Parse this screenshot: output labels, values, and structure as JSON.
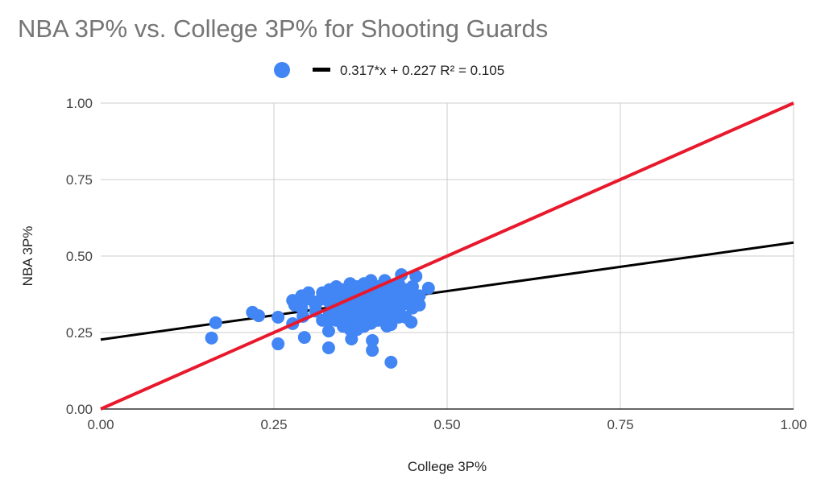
{
  "chart_data": {
    "type": "scatter",
    "title": "NBA 3P% vs. College 3P% for Shooting Guards",
    "xlabel": "College 3P%",
    "ylabel": "NBA 3P%",
    "xlim": [
      0,
      1
    ],
    "ylim": [
      0,
      1
    ],
    "x_ticks": [
      "0.00",
      "0.25",
      "0.50",
      "0.75",
      "1.00"
    ],
    "y_ticks": [
      "0.00",
      "0.25",
      "0.50",
      "0.75",
      "1.00"
    ],
    "grid": true,
    "legend_position": "top",
    "legend": {
      "series": "",
      "trendline": "0.317*x + 0.227 R² = 0.105"
    },
    "trendline": {
      "slope": 0.317,
      "intercept": 0.227,
      "r2": 0.105
    },
    "reference_line": {
      "slope": 1,
      "intercept": 0
    },
    "colors": {
      "points": "#4285f4",
      "trendline": "#000000",
      "reference": "#e8192c"
    },
    "points": [
      [
        0.16,
        0.232
      ],
      [
        0.166,
        0.282
      ],
      [
        0.219,
        0.316
      ],
      [
        0.228,
        0.305
      ],
      [
        0.256,
        0.3
      ],
      [
        0.256,
        0.213
      ],
      [
        0.277,
        0.355
      ],
      [
        0.277,
        0.279
      ],
      [
        0.294,
        0.234
      ],
      [
        0.292,
        0.303
      ],
      [
        0.329,
        0.255
      ],
      [
        0.329,
        0.2
      ],
      [
        0.362,
        0.229
      ],
      [
        0.392,
        0.224
      ],
      [
        0.392,
        0.192
      ],
      [
        0.419,
        0.153
      ],
      [
        0.413,
        0.271
      ],
      [
        0.419,
        0.276
      ],
      [
        0.448,
        0.284
      ],
      [
        0.473,
        0.395
      ],
      [
        0.455,
        0.434
      ],
      [
        0.434,
        0.439
      ],
      [
        0.453,
        0.342
      ],
      [
        0.3,
        0.36
      ],
      [
        0.31,
        0.34
      ],
      [
        0.32,
        0.38
      ],
      [
        0.33,
        0.35
      ],
      [
        0.33,
        0.31
      ],
      [
        0.34,
        0.37
      ],
      [
        0.34,
        0.33
      ],
      [
        0.35,
        0.39
      ],
      [
        0.35,
        0.35
      ],
      [
        0.35,
        0.3
      ],
      [
        0.36,
        0.41
      ],
      [
        0.36,
        0.37
      ],
      [
        0.36,
        0.33
      ],
      [
        0.36,
        0.29
      ],
      [
        0.37,
        0.4
      ],
      [
        0.37,
        0.36
      ],
      [
        0.37,
        0.32
      ],
      [
        0.37,
        0.28
      ],
      [
        0.38,
        0.41
      ],
      [
        0.38,
        0.38
      ],
      [
        0.38,
        0.34
      ],
      [
        0.38,
        0.3
      ],
      [
        0.39,
        0.42
      ],
      [
        0.39,
        0.39
      ],
      [
        0.39,
        0.35
      ],
      [
        0.39,
        0.31
      ],
      [
        0.4,
        0.4
      ],
      [
        0.4,
        0.37
      ],
      [
        0.4,
        0.33
      ],
      [
        0.4,
        0.29
      ],
      [
        0.41,
        0.42
      ],
      [
        0.41,
        0.38
      ],
      [
        0.41,
        0.34
      ],
      [
        0.41,
        0.31
      ],
      [
        0.42,
        0.4
      ],
      [
        0.42,
        0.36
      ],
      [
        0.42,
        0.33
      ],
      [
        0.43,
        0.41
      ],
      [
        0.43,
        0.37
      ],
      [
        0.43,
        0.32
      ],
      [
        0.44,
        0.39
      ],
      [
        0.44,
        0.35
      ],
      [
        0.44,
        0.3
      ],
      [
        0.45,
        0.4
      ],
      [
        0.45,
        0.36
      ],
      [
        0.45,
        0.33
      ],
      [
        0.46,
        0.37
      ],
      [
        0.46,
        0.34
      ],
      [
        0.3,
        0.38
      ],
      [
        0.31,
        0.32
      ],
      [
        0.32,
        0.36
      ],
      [
        0.34,
        0.4
      ],
      [
        0.35,
        0.27
      ],
      [
        0.36,
        0.26
      ],
      [
        0.37,
        0.26
      ],
      [
        0.38,
        0.27
      ],
      [
        0.39,
        0.28
      ],
      [
        0.34,
        0.29
      ],
      [
        0.33,
        0.29
      ],
      [
        0.32,
        0.29
      ],
      [
        0.31,
        0.35
      ],
      [
        0.29,
        0.33
      ],
      [
        0.28,
        0.34
      ],
      [
        0.29,
        0.37
      ],
      [
        0.33,
        0.39
      ],
      [
        0.355,
        0.32
      ],
      [
        0.365,
        0.35
      ],
      [
        0.375,
        0.38
      ],
      [
        0.385,
        0.32
      ],
      [
        0.395,
        0.37
      ],
      [
        0.405,
        0.35
      ],
      [
        0.415,
        0.39
      ],
      [
        0.425,
        0.38
      ],
      [
        0.435,
        0.34
      ],
      [
        0.445,
        0.37
      ],
      [
        0.43,
        0.3
      ],
      [
        0.42,
        0.3
      ]
    ]
  }
}
